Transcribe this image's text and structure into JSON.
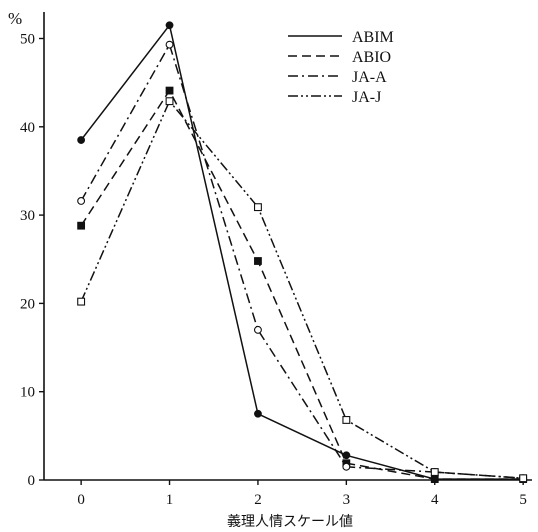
{
  "chart_data": {
    "type": "line",
    "title": "",
    "xlabel": "義理人情スケール値",
    "ylabel": "",
    "y_unit": "%",
    "x": [
      0,
      1,
      2,
      3,
      4,
      5
    ],
    "x_tick_labels": [
      "0",
      "1",
      "2",
      "3",
      "4",
      "5"
    ],
    "y_ticks": [
      0,
      10,
      20,
      30,
      40,
      50
    ],
    "xlim": [
      -0.42,
      5.1
    ],
    "ylim": [
      0,
      53
    ],
    "grid": false,
    "legend_position": "top-right",
    "series": [
      {
        "name": "ABIM",
        "values": [
          38.5,
          51.5,
          7.5,
          2.8,
          0.1,
          0.1
        ],
        "dash": "solid",
        "marker": "filled-circle",
        "color": "#111111"
      },
      {
        "name": "ABIO",
        "values": [
          28.8,
          44.1,
          24.8,
          1.9,
          0.1,
          0.1
        ],
        "dash": "dashed",
        "marker": "filled-square",
        "color": "#111111"
      },
      {
        "name": "JA-A",
        "values": [
          31.6,
          49.3,
          17.0,
          1.5,
          0.9,
          0.2
        ],
        "dash": "dash-dot",
        "marker": "open-circle",
        "color": "#111111"
      },
      {
        "name": "JA-J",
        "values": [
          20.2,
          42.9,
          30.9,
          6.8,
          0.9,
          0.2
        ],
        "dash": "dash-dot-dot",
        "marker": "open-square",
        "color": "#111111"
      }
    ]
  }
}
